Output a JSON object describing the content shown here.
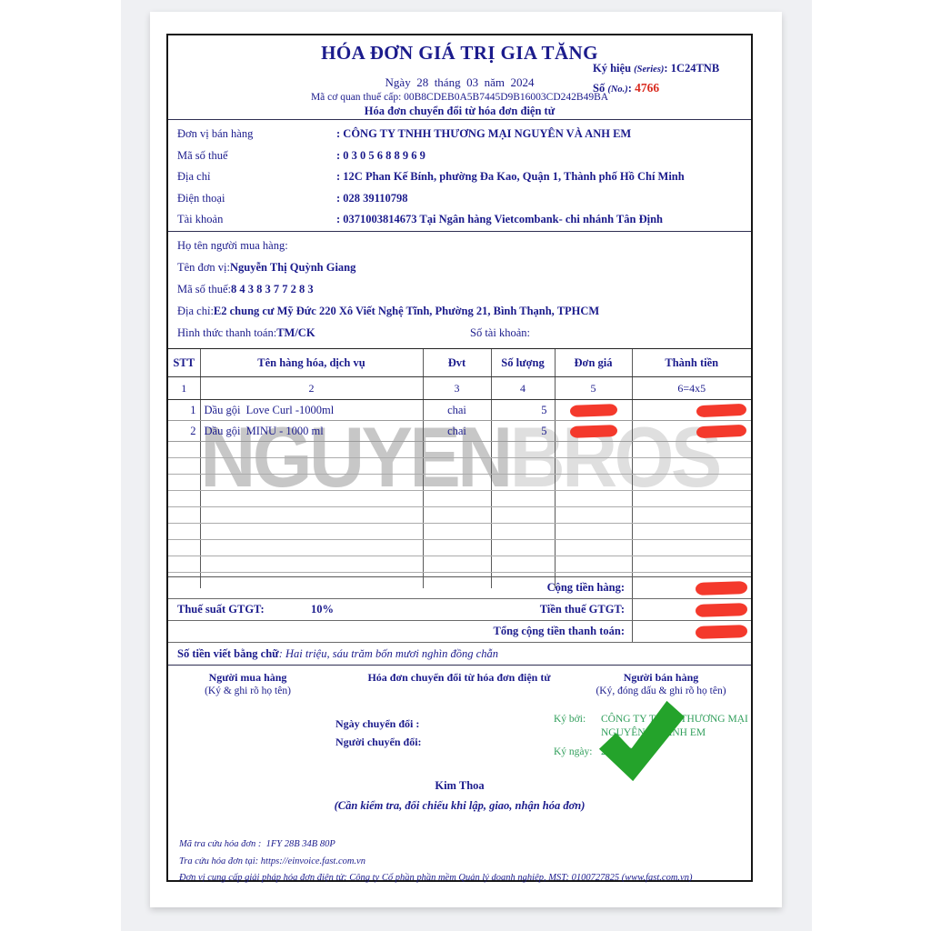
{
  "colors": {
    "text_navy": "#1b1b8c",
    "invoice_number_red": "#d92b1f",
    "redaction_red": "#f4392c",
    "signature_green": "#2f9e5a",
    "checkmark_green": "#24a32b",
    "watermark_gray": "#c7c7c7",
    "viewer_background_gray": "#eff0f3"
  },
  "header": {
    "title": "HÓA ĐƠN GIÁ TRỊ GIA TĂNG",
    "date_line": "Ngày  28  tháng  03  năm  2024",
    "tax_authority_code_line": "Mã cơ quan thuế cấp: 00B8CDEB0A5B7445D9B16003CD242B49BA",
    "subtitle": "Hóa đơn chuyển đổi từ hóa đơn điện tử",
    "series_label": "Ký hiệu ",
    "series_paren": "(Series)",
    "series_value": ": 1C24TNB",
    "no_label": "Số ",
    "no_paren": "(No.)",
    "no_colon": ": ",
    "no_value": "4766"
  },
  "seller": {
    "rows": [
      {
        "label": "Đơn vị bán hàng",
        "value": ": CÔNG TY TNHH THƯƠNG MẠI NGUYÊN VÀ ANH EM"
      },
      {
        "label": "Mã số thuế",
        "value": ": 0 3 0 5 6 8 8 9 6 9"
      },
      {
        "label": "Địa chỉ",
        "value": ": 12C Phan Kế Bính, phường Đa Kao, Quận 1, Thành phố Hồ Chí Minh"
      },
      {
        "label": "Điện thoại",
        "value": ": 028 39110798"
      },
      {
        "label": "Tài khoản",
        "value": ": 0371003814673 Tại Ngân hàng Vietcombank- chi nhánh Tân Định"
      }
    ]
  },
  "buyer": {
    "name_label": "Họ tên người mua hàng:",
    "unit_label": "Tên đơn vị: ",
    "unit_value": "Nguyễn Thị Quỳnh Giang",
    "tax_label": "Mã số thuế: ",
    "tax_value": "8 4 3 8 3 7 7 2 8 3",
    "address_label": "Địa chỉ: ",
    "address_value": "E2 chung cư Mỹ Đức 220 Xô Viết Nghệ Tĩnh, Phường 21, Bình Thạnh, TPHCM",
    "payment_label": "Hình thức thanh toán: ",
    "payment_value": "TM/CK",
    "account_label": "Số tài khoản:"
  },
  "table": {
    "headers": [
      "STT",
      "Tên hàng hóa, dịch vụ",
      "Đvt",
      "Số lượng",
      "Đơn giá",
      "Thành tiền"
    ],
    "index_row": [
      "1",
      "2",
      "3",
      "4",
      "5",
      "6=4x5"
    ],
    "rows": [
      {
        "stt": "1",
        "name": "Dầu gội  Love Curl -1000ml",
        "unit": "chai",
        "qty": "5",
        "unit_price_redacted": true,
        "amount_redacted": true
      },
      {
        "stt": "2",
        "name": "Dầu gội  MINU - 1000 ml",
        "unit": "chai",
        "qty": "5",
        "unit_price_redacted": true,
        "amount_redacted": true
      }
    ],
    "empty_row_count": 9
  },
  "totals": {
    "subtotal_label": "Cộng tiền hàng:",
    "subtotal_redacted": true,
    "vat_rate_label": "Thuế suất GTGT:",
    "vat_rate_value": "10%",
    "vat_amount_label": "Tiền thuế GTGT:",
    "vat_amount_redacted": true,
    "grand_total_label": "Tổng cộng tiền thanh toán:",
    "grand_total_redacted": true,
    "amount_in_words_label": "Số tiền viết bằng chữ",
    "amount_in_words_value": ": Hai triệu, sáu trăm bốn mươi nghìn đồng chẵn"
  },
  "signatures": {
    "buyer_title": "Người mua hàng",
    "buyer_note": "(Ký & ghi rõ họ tên)",
    "center_title": "Hóa đơn chuyển đổi từ hóa đơn điện tử",
    "seller_title": "Người bán hàng",
    "seller_note": "(Ký, đóng dấu & ghi rõ họ tên)",
    "conversion_date_label": "Ngày chuyển đổi :",
    "converter_label": "Người chuyển đổi:",
    "signed_by_label": "Ký bởi:",
    "signed_by_value": "CÔNG TY TNHH THƯƠNG MẠI NGUYÊN VÀ ANH EM",
    "signed_date_label": "Ký ngày:",
    "signed_date_value": "28/03/2024",
    "signer_name": "Kim Thoa",
    "check_note": "(Cần kiểm tra, đối chiếu khi lập, giao, nhận hóa đơn)"
  },
  "footer": {
    "lookup_code_line": "Mã tra cứu hóa đơn :  1FY 28B 34B 80P",
    "lookup_site_line": "Tra cứu hóa đơn tại: https://einvoice.fast.com.vn",
    "provider_line": "Đơn vị cung cấp giải pháp hóa đơn điện tử: Công ty Cổ phần phần mềm Quản lý doanh nghiệp, MST: 0100727825 (www.fast.com.vn)"
  },
  "watermark": {
    "part1": "NGUYEN",
    "part2": "BROS"
  }
}
